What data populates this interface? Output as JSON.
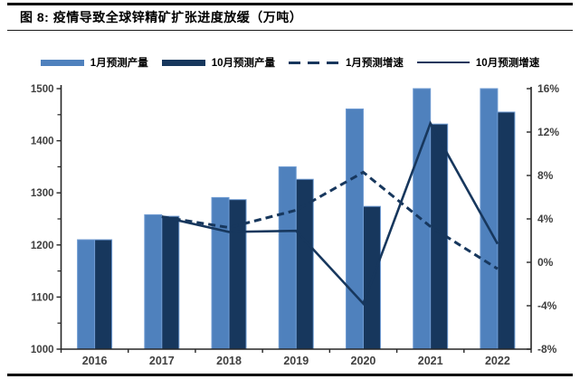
{
  "figure": {
    "title": "图 8: 疫情导致全球锌精矿扩张进度放缓（万吨）"
  },
  "chart_data": {
    "type": "bar",
    "subtype": "bar-line-combo",
    "title": "疫情导致全球锌精矿扩张进度放缓（万吨）",
    "unit": "万吨",
    "grid": false,
    "legend_position": "top",
    "categories": [
      "2016",
      "2017",
      "2018",
      "2019",
      "2020",
      "2021",
      "2022"
    ],
    "series": [
      {
        "name": "1月预测产量",
        "type": "bar",
        "axis": "left",
        "color": "#4f81bd",
        "values": [
          1210,
          1258,
          1291,
          1350,
          1461,
          1500,
          1500
        ]
      },
      {
        "name": "10月预测产量",
        "type": "bar",
        "axis": "left",
        "color": "#17375d",
        "values": [
          1210,
          1255,
          1287,
          1326,
          1274,
          1432,
          1455
        ]
      },
      {
        "name": "1月预测增速",
        "type": "line",
        "style": "dashed",
        "axis": "right",
        "color": "#17375d",
        "values": [
          null,
          4.2,
          3.2,
          4.8,
          8.3,
          3.3,
          -0.6
        ]
      },
      {
        "name": "10月预测增速",
        "type": "line",
        "style": "solid",
        "axis": "right",
        "color": "#17375d",
        "values": [
          null,
          4.2,
          2.8,
          2.9,
          -3.8,
          12.8,
          1.7
        ]
      }
    ],
    "left_axis": {
      "min": 1000,
      "max": 1500,
      "tick_step": 100,
      "minor_tick_step": 50,
      "tick_labels": [
        "1000",
        "1100",
        "1200",
        "1300",
        "1400",
        "1500"
      ]
    },
    "right_axis": {
      "min": -8,
      "max": 16,
      "tick_step": 4,
      "format": "percent",
      "tick_labels": [
        "-8%",
        "-4%",
        "0%",
        "4%",
        "8%",
        "12%",
        "16%"
      ]
    }
  },
  "style": {
    "axis_color": "#262626",
    "tick_label_color": "#404040",
    "bar_stroke_color": "#6f9bd2"
  }
}
